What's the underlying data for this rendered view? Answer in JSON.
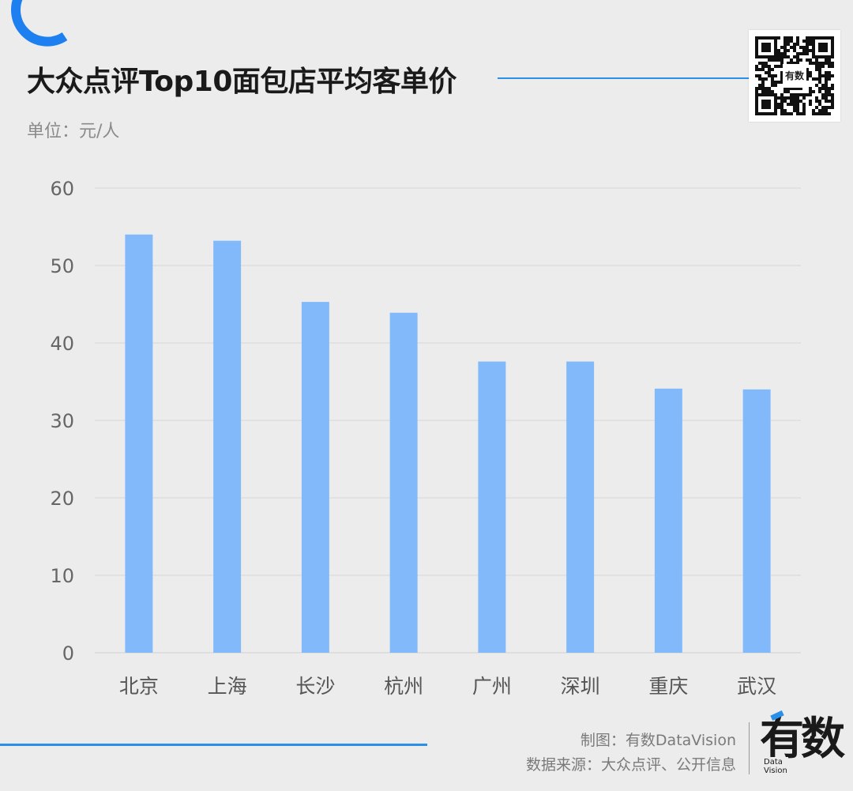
{
  "header": {
    "title": "大众点评Top10面包店平均客单价",
    "unit": "单位：元/人"
  },
  "qr": {
    "logo_text": "有数"
  },
  "footer": {
    "credit": "制图：有数DataVision",
    "source": "数据来源：大众点评、公开信息"
  },
  "logo": {
    "main": "有数",
    "sub_top": "Data",
    "sub_bottom": "Vision"
  },
  "colors": {
    "accent": "#2a8fe8",
    "bar": "#82b9fb",
    "grid": "#d6d6d6",
    "tick": "#666666",
    "background": "#ececec"
  },
  "chart_data": {
    "type": "bar",
    "categories": [
      "北京",
      "上海",
      "长沙",
      "杭州",
      "广州",
      "深圳",
      "重庆",
      "武汉"
    ],
    "values": [
      54,
      53.2,
      45.3,
      43.9,
      37.6,
      37.6,
      34.1,
      34
    ],
    "ylim": [
      0,
      60
    ],
    "yticks": [
      0,
      10,
      20,
      30,
      40,
      50,
      60
    ],
    "grid": true,
    "legend": "none"
  }
}
